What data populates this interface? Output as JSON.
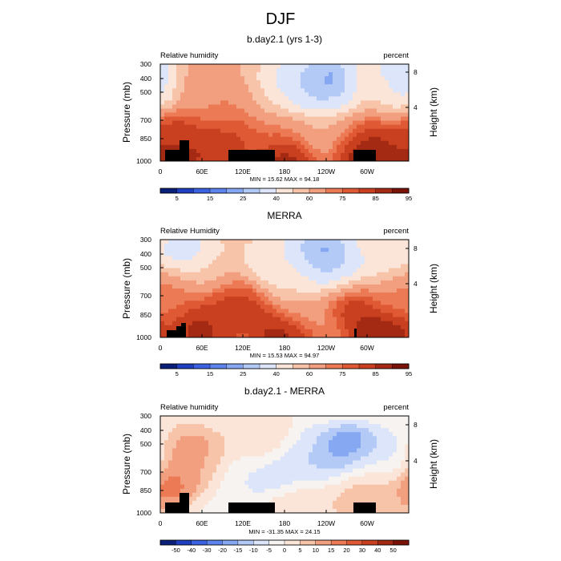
{
  "figure": {
    "title": "DJF"
  },
  "colors": {
    "seq": [
      "#0a1f7a",
      "#1e3fbf",
      "#3b62e0",
      "#5c84ec",
      "#86a8f2",
      "#b3c9f6",
      "#dce5f9",
      "#fbe5d8",
      "#f8c4a9",
      "#f29f7f",
      "#eb7a55",
      "#df5a34",
      "#c8401f",
      "#a52a14",
      "#7a1208"
    ],
    "div": [
      "#0a1f7a",
      "#1e3fbf",
      "#3b62e0",
      "#5c84ec",
      "#86a8f2",
      "#b3c9f6",
      "#dce5f9",
      "#f7f3f0",
      "#fbe5d8",
      "#f8c4a9",
      "#f29f7f",
      "#eb7a55",
      "#df5a34",
      "#c8401f",
      "#a52a14",
      "#7a1208"
    ],
    "topo": "#000000"
  },
  "chart_data": [
    {
      "type": "heatmap",
      "title": "b.day2.1 (yrs 1-3)",
      "left_label": "Relative humidity",
      "right_label": "percent",
      "ylabel": "Pressure (mb)",
      "y2label": "Height (km)",
      "pressure_ticks": [
        "300",
        "400",
        "500",
        "700",
        "850",
        "1000"
      ],
      "height_ticks": [
        "8",
        "4"
      ],
      "lon_ticks": [
        "0",
        "60E",
        "120E",
        "180",
        "120W",
        "60W"
      ],
      "minmax": "MIN = 15.62  MAX = 94.18",
      "colorbar_labels": [
        "5",
        "15",
        "25",
        "40",
        "60",
        "75",
        "85",
        "95"
      ],
      "scale": "seq",
      "blobs": [
        {
          "lon": 55,
          "p": 400,
          "v": 68
        },
        {
          "lon": 25,
          "p": 700,
          "v": 84
        },
        {
          "lon": 90,
          "p": 500,
          "v": 70
        },
        {
          "lon": 108,
          "p": 700,
          "v": 84
        },
        {
          "lon": 125,
          "p": 500,
          "v": 74
        },
        {
          "lon": 160,
          "p": 450,
          "v": 38
        },
        {
          "lon": 205,
          "p": 380,
          "v": 30
        },
        {
          "lon": 240,
          "p": 380,
          "v": 16
        },
        {
          "lon": 255,
          "p": 500,
          "v": 28
        },
        {
          "lon": 285,
          "p": 650,
          "v": 85
        },
        {
          "lon": 320,
          "p": 420,
          "v": 55
        },
        {
          "lon": 345,
          "p": 380,
          "v": 22
        },
        {
          "lon": 160,
          "p": 700,
          "v": 72
        },
        {
          "lon": 230,
          "p": 700,
          "v": 62
        },
        {
          "lon": 20,
          "p": 900,
          "v": 90
        },
        {
          "lon": 180,
          "p": 920,
          "v": 93
        },
        {
          "lon": 300,
          "p": 920,
          "v": 94
        },
        {
          "lon": 80,
          "p": 900,
          "v": 88
        }
      ]
    },
    {
      "type": "heatmap",
      "title": "MERRA",
      "left_label": "Relative Humidity",
      "right_label": "percent",
      "ylabel": "Pressure (mb)",
      "y2label": "Height (km)",
      "pressure_ticks": [
        "300",
        "400",
        "500",
        "700",
        "850",
        "1000"
      ],
      "height_ticks": [
        "8",
        "4"
      ],
      "lon_ticks": [
        "0",
        "60E",
        "120E",
        "180",
        "120W",
        "60W"
      ],
      "minmax": "MIN = 15.53  MAX = 94.97",
      "colorbar_labels": [
        "5",
        "15",
        "25",
        "40",
        "60",
        "75",
        "85",
        "95"
      ],
      "scale": "seq",
      "blobs": [
        {
          "lon": 40,
          "p": 380,
          "v": 28
        },
        {
          "lon": 15,
          "p": 550,
          "v": 78
        },
        {
          "lon": 70,
          "p": 450,
          "v": 58
        },
        {
          "lon": 100,
          "p": 650,
          "v": 84
        },
        {
          "lon": 120,
          "p": 700,
          "v": 84
        },
        {
          "lon": 165,
          "p": 400,
          "v": 40
        },
        {
          "lon": 195,
          "p": 500,
          "v": 45
        },
        {
          "lon": 230,
          "p": 360,
          "v": 18
        },
        {
          "lon": 250,
          "p": 450,
          "v": 25
        },
        {
          "lon": 275,
          "p": 650,
          "v": 88
        },
        {
          "lon": 320,
          "p": 400,
          "v": 40
        },
        {
          "lon": 340,
          "p": 600,
          "v": 70
        },
        {
          "lon": 210,
          "p": 720,
          "v": 62
        },
        {
          "lon": 60,
          "p": 900,
          "v": 90
        },
        {
          "lon": 180,
          "p": 910,
          "v": 93
        },
        {
          "lon": 320,
          "p": 910,
          "v": 94
        }
      ]
    },
    {
      "type": "heatmap",
      "title": "b.day2.1 - MERRA",
      "left_label": "Relative humidity",
      "right_label": "percent",
      "ylabel": "Pressure (mb)",
      "y2label": "Height (km)",
      "pressure_ticks": [
        "300",
        "400",
        "500",
        "700",
        "850",
        "1000"
      ],
      "height_ticks": [
        "8",
        "4"
      ],
      "lon_ticks": [
        "0",
        "60E",
        "120E",
        "180",
        "120W",
        "60W"
      ],
      "minmax": "MIN = -31.35  MAX = 24.15",
      "colorbar_labels": [
        "-50",
        "-40",
        "-30",
        "-20",
        "-15",
        "-10",
        "-5",
        "0",
        "5",
        "10",
        "15",
        "20",
        "30",
        "40",
        "50"
      ],
      "scale": "div",
      "blobs": [
        {
          "lon": 40,
          "p": 500,
          "v": 16
        },
        {
          "lon": 28,
          "p": 700,
          "v": 22
        },
        {
          "lon": 60,
          "p": 600,
          "v": 8
        },
        {
          "lon": 110,
          "p": 650,
          "v": -6
        },
        {
          "lon": 150,
          "p": 450,
          "v": 6
        },
        {
          "lon": 175,
          "p": 600,
          "v": -14
        },
        {
          "lon": 220,
          "p": 500,
          "v": -10
        },
        {
          "lon": 275,
          "p": 500,
          "v": -30
        },
        {
          "lon": 290,
          "p": 600,
          "v": 12
        },
        {
          "lon": 330,
          "p": 500,
          "v": -8
        },
        {
          "lon": 200,
          "p": 850,
          "v": 6
        },
        {
          "lon": 300,
          "p": 880,
          "v": 8
        },
        {
          "lon": 80,
          "p": 900,
          "v": -4
        }
      ]
    }
  ]
}
